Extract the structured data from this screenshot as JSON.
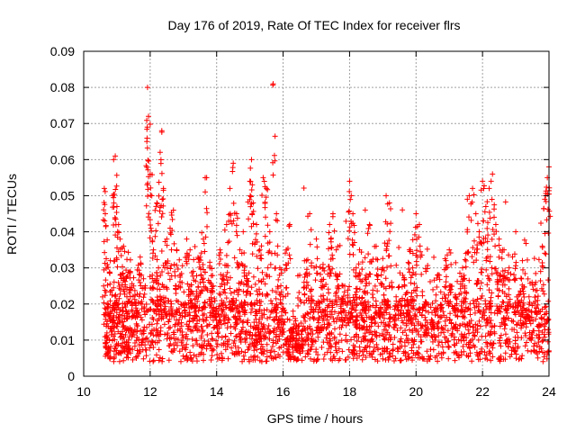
{
  "chart_data": {
    "type": "scatter",
    "title": "Day 176 of 2019, Rate Of TEC Index for receiver flrs",
    "xlabel": "GPS time / hours",
    "ylabel": "ROTI / TECUs",
    "xlim": [
      10,
      24
    ],
    "ylim": [
      0,
      0.09
    ],
    "grid": true,
    "marker": "+",
    "series_color": "#ff0000",
    "x_ticks": [
      10,
      12,
      14,
      16,
      18,
      20,
      22,
      24
    ],
    "x_tick_labels": [
      "10",
      "12",
      "14",
      "16",
      "18",
      "20",
      "22",
      "24"
    ],
    "y_ticks": [
      0,
      0.01,
      0.02,
      0.03,
      0.04,
      0.05,
      0.06,
      0.07,
      0.08,
      0.09
    ],
    "y_tick_labels": [
      "0",
      "0.01",
      "0.02",
      "0.03",
      "0.04",
      "0.05",
      "0.06",
      "0.07",
      "0.08",
      "0.09"
    ],
    "series": [
      {
        "name": "ROTI",
        "description": "Sampled representative points; dense cloud mostly 0.005-0.03 with spikes",
        "points": [
          [
            10.6,
            0.025
          ],
          [
            10.62,
            0.052
          ],
          [
            10.65,
            0.045
          ],
          [
            10.7,
            0.012
          ],
          [
            10.75,
            0.008
          ],
          [
            10.8,
            0.032
          ],
          [
            10.85,
            0.018
          ],
          [
            10.9,
            0.06
          ],
          [
            10.95,
            0.061
          ],
          [
            11.0,
            0.047
          ],
          [
            11.05,
            0.042
          ],
          [
            11.1,
            0.028
          ],
          [
            11.15,
            0.015
          ],
          [
            11.2,
            0.036
          ],
          [
            11.3,
            0.022
          ],
          [
            11.35,
            0.01
          ],
          [
            11.4,
            0.029
          ],
          [
            11.5,
            0.025
          ],
          [
            11.6,
            0.018
          ],
          [
            11.7,
            0.033
          ],
          [
            11.8,
            0.027
          ],
          [
            11.9,
            0.065
          ],
          [
            11.92,
            0.08
          ],
          [
            11.95,
            0.072
          ],
          [
            12.0,
            0.056
          ],
          [
            12.05,
            0.05
          ],
          [
            12.1,
            0.035
          ],
          [
            12.2,
            0.048
          ],
          [
            12.25,
            0.03
          ],
          [
            12.3,
            0.062
          ],
          [
            12.35,
            0.068
          ],
          [
            12.4,
            0.052
          ],
          [
            12.5,
            0.038
          ],
          [
            12.6,
            0.041
          ],
          [
            12.7,
            0.046
          ],
          [
            12.8,
            0.035
          ],
          [
            12.9,
            0.028
          ],
          [
            13.0,
            0.02
          ],
          [
            13.1,
            0.038
          ],
          [
            13.2,
            0.035
          ],
          [
            13.3,
            0.029
          ],
          [
            13.4,
            0.022
          ],
          [
            13.5,
            0.033
          ],
          [
            13.6,
            0.038
          ],
          [
            13.7,
            0.055
          ],
          [
            13.8,
            0.03
          ],
          [
            13.9,
            0.025
          ],
          [
            14.0,
            0.018
          ],
          [
            14.1,
            0.035
          ],
          [
            14.2,
            0.028
          ],
          [
            14.3,
            0.042
          ],
          [
            14.4,
            0.052
          ],
          [
            14.5,
            0.059
          ],
          [
            14.6,
            0.045
          ],
          [
            14.7,
            0.035
          ],
          [
            14.8,
            0.04
          ],
          [
            14.9,
            0.028
          ],
          [
            15.0,
            0.054
          ],
          [
            15.05,
            0.06
          ],
          [
            15.1,
            0.048
          ],
          [
            15.2,
            0.042
          ],
          [
            15.3,
            0.035
          ],
          [
            15.4,
            0.055
          ],
          [
            15.5,
            0.052
          ],
          [
            15.6,
            0.04
          ],
          [
            15.7,
            0.081
          ],
          [
            15.8,
            0.045
          ],
          [
            15.9,
            0.03
          ],
          [
            16.0,
            0.022
          ],
          [
            16.1,
            0.035
          ],
          [
            16.2,
            0.042
          ],
          [
            16.3,
            0.018
          ],
          [
            16.4,
            0.012
          ],
          [
            16.5,
            0.028
          ],
          [
            16.7,
            0.032
          ],
          [
            16.8,
            0.045
          ],
          [
            17.0,
            0.038
          ],
          [
            17.2,
            0.03
          ],
          [
            17.4,
            0.042
          ],
          [
            17.5,
            0.045
          ],
          [
            17.6,
            0.035
          ],
          [
            17.8,
            0.025
          ],
          [
            18.0,
            0.054
          ],
          [
            18.05,
            0.05
          ],
          [
            18.1,
            0.045
          ],
          [
            18.2,
            0.03
          ],
          [
            18.3,
            0.035
          ],
          [
            18.5,
            0.028
          ],
          [
            18.6,
            0.042
          ],
          [
            18.8,
            0.036
          ],
          [
            19.0,
            0.03
          ],
          [
            19.1,
            0.05
          ],
          [
            19.2,
            0.048
          ],
          [
            19.4,
            0.022
          ],
          [
            19.6,
            0.028
          ],
          [
            19.8,
            0.035
          ],
          [
            19.9,
            0.03
          ],
          [
            20.0,
            0.045
          ],
          [
            20.1,
            0.042
          ],
          [
            20.3,
            0.02
          ],
          [
            20.5,
            0.015
          ],
          [
            20.7,
            0.028
          ],
          [
            20.9,
            0.032
          ],
          [
            21.0,
            0.035
          ],
          [
            21.2,
            0.022
          ],
          [
            21.4,
            0.03
          ],
          [
            21.5,
            0.034
          ],
          [
            21.6,
            0.05
          ],
          [
            21.7,
            0.052
          ],
          [
            21.8,
            0.045
          ],
          [
            21.9,
            0.04
          ],
          [
            22.0,
            0.054
          ],
          [
            22.1,
            0.047
          ],
          [
            22.2,
            0.052
          ],
          [
            22.3,
            0.056
          ],
          [
            22.4,
            0.042
          ],
          [
            22.5,
            0.038
          ],
          [
            22.6,
            0.035
          ],
          [
            22.8,
            0.03
          ],
          [
            23.0,
            0.04
          ],
          [
            23.2,
            0.032
          ],
          [
            23.4,
            0.022
          ],
          [
            23.6,
            0.026
          ],
          [
            23.8,
            0.036
          ],
          [
            23.9,
            0.05
          ],
          [
            23.95,
            0.055
          ],
          [
            24.0,
            0.058
          ]
        ]
      }
    ]
  }
}
